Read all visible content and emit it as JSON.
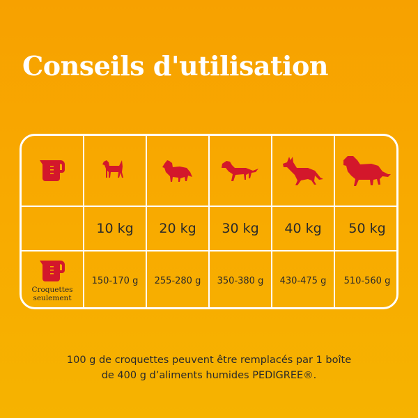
{
  "title": "Conseils d'utilisation",
  "colors": {
    "accent": "#d3172b",
    "line": "#ffffff",
    "text": "#2a2a2a"
  },
  "header_icon": "measuring-cup-icon",
  "dogs": [
    {
      "icon": "small-dog-icon",
      "weight": "10 kg",
      "amount": "150-170 g"
    },
    {
      "icon": "collie-dog-icon",
      "weight": "20 kg",
      "amount": "255-280 g"
    },
    {
      "icon": "setter-dog-icon",
      "weight": "30 kg",
      "amount": "350-380 g"
    },
    {
      "icon": "shepherd-dog-icon",
      "weight": "40 kg",
      "amount": "430-475 g"
    },
    {
      "icon": "large-dog-icon",
      "weight": "50 kg",
      "amount": "510-560 g"
    }
  ],
  "row_label": "Croquettes seulement",
  "footnote_line1": "100 g de croquettes peuvent être remplacés par 1 boîte",
  "footnote_line2": "de 400 g d’aliments humides PEDIGREE®."
}
